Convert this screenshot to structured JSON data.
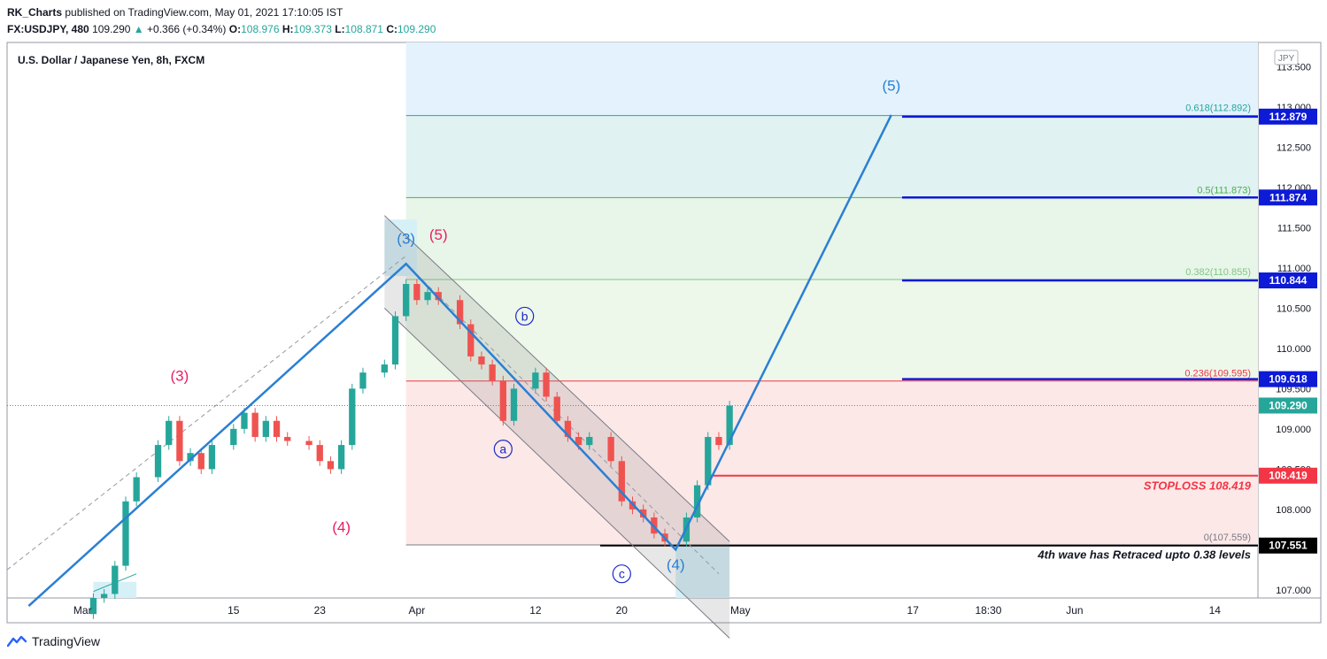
{
  "header": {
    "author": "RK_Charts",
    "published": "published on TradingView.com, May 01, 2021 17:10:05 IST",
    "symbol": "FX:USDJPY, 480",
    "last": "109.290",
    "change": "+0.366 (+0.34%)",
    "o_label": "O:",
    "o_value": "108.976",
    "h_label": "H:",
    "h_value": "109.373",
    "l_label": "L:",
    "l_value": "108.871",
    "c_label": "C:",
    "c_value": "109.290",
    "accent": "#26a69a"
  },
  "footer": {
    "brand": "TradingView"
  },
  "chart_data": {
    "type": "candlestick",
    "title": "U.S. Dollar / Japanese Yen, 8h, FXCM",
    "currency": "JPY",
    "ylim": [
      106.9,
      113.8
    ],
    "xlim": [
      "2021-02-22",
      "2021-06-18"
    ],
    "y_ticks": [
      "107.000",
      "107.500",
      "108.000",
      "108.500",
      "109.000",
      "109.500",
      "110.000",
      "110.500",
      "111.000",
      "111.500",
      "112.000",
      "112.500",
      "113.000",
      "113.500"
    ],
    "x_ticks": [
      {
        "label": "Mar",
        "date": "2021-03-01"
      },
      {
        "label": "15",
        "date": "2021-03-15"
      },
      {
        "label": "23",
        "date": "2021-03-23"
      },
      {
        "label": "Apr",
        "date": "2021-04-01"
      },
      {
        "label": "12",
        "date": "2021-04-12"
      },
      {
        "label": "20",
        "date": "2021-04-20"
      },
      {
        "label": "May",
        "date": "2021-05-01"
      },
      {
        "label": "17",
        "date": "2021-05-17"
      },
      {
        "label": "18:30",
        "date": "2021-05-24"
      },
      {
        "label": "Jun",
        "date": "2021-06-01"
      },
      {
        "label": "14",
        "date": "2021-06-14"
      }
    ],
    "series": [
      {
        "name": "",
        "points": [
          {
            "date": "2021-03-02",
            "price": 106.9
          },
          {
            "date": "2021-03-03",
            "price": 106.95
          },
          {
            "date": "2021-03-04",
            "price": 107.3
          },
          {
            "date": "2021-03-05",
            "price": 108.1
          },
          {
            "date": "2021-03-06",
            "price": 108.4
          },
          {
            "date": "2021-03-08",
            "price": 108.8
          },
          {
            "date": "2021-03-09",
            "price": 109.1
          },
          {
            "date": "2021-03-10",
            "price": 108.6
          },
          {
            "date": "2021-03-11",
            "price": 108.7
          },
          {
            "date": "2021-03-12",
            "price": 108.5
          },
          {
            "date": "2021-03-13",
            "price": 108.8
          },
          {
            "date": "2021-03-15",
            "price": 109.0
          },
          {
            "date": "2021-03-16",
            "price": 109.2
          },
          {
            "date": "2021-03-17",
            "price": 108.9
          },
          {
            "date": "2021-03-18",
            "price": 109.1
          },
          {
            "date": "2021-03-19",
            "price": 108.9
          },
          {
            "date": "2021-03-20",
            "price": 108.85
          },
          {
            "date": "2021-03-22",
            "price": 108.8
          },
          {
            "date": "2021-03-23",
            "price": 108.6
          },
          {
            "date": "2021-03-24",
            "price": 108.5
          },
          {
            "date": "2021-03-25",
            "price": 108.8
          },
          {
            "date": "2021-03-26",
            "price": 109.5
          },
          {
            "date": "2021-03-27",
            "price": 109.7
          },
          {
            "date": "2021-03-29",
            "price": 109.8
          },
          {
            "date": "2021-03-30",
            "price": 110.4
          },
          {
            "date": "2021-03-31",
            "price": 110.8
          },
          {
            "date": "2021-04-01",
            "price": 110.6
          },
          {
            "date": "2021-04-02",
            "price": 110.7
          },
          {
            "date": "2021-04-03",
            "price": 110.6
          },
          {
            "date": "2021-04-05",
            "price": 110.3
          },
          {
            "date": "2021-04-06",
            "price": 109.9
          },
          {
            "date": "2021-04-07",
            "price": 109.8
          },
          {
            "date": "2021-04-08",
            "price": 109.6
          },
          {
            "date": "2021-04-09",
            "price": 109.1
          },
          {
            "date": "2021-04-10",
            "price": 109.5
          },
          {
            "date": "2021-04-12",
            "price": 109.7
          },
          {
            "date": "2021-04-13",
            "price": 109.4
          },
          {
            "date": "2021-04-14",
            "price": 109.1
          },
          {
            "date": "2021-04-15",
            "price": 108.9
          },
          {
            "date": "2021-04-16",
            "price": 108.8
          },
          {
            "date": "2021-04-17",
            "price": 108.9
          },
          {
            "date": "2021-04-19",
            "price": 108.6
          },
          {
            "date": "2021-04-20",
            "price": 108.1
          },
          {
            "date": "2021-04-21",
            "price": 108.0
          },
          {
            "date": "2021-04-22",
            "price": 107.9
          },
          {
            "date": "2021-04-23",
            "price": 107.7
          },
          {
            "date": "2021-04-24",
            "price": 107.6
          },
          {
            "date": "2021-04-26",
            "price": 107.9
          },
          {
            "date": "2021-04-27",
            "price": 108.3
          },
          {
            "date": "2021-04-28",
            "price": 108.9
          },
          {
            "date": "2021-04-29",
            "price": 108.8
          },
          {
            "date": "2021-04-30",
            "price": 109.29
          }
        ]
      }
    ],
    "fibonacci": [
      {
        "level": "0.618(112.892)",
        "price": 112.892,
        "color": "#26a69a"
      },
      {
        "level": "0.5(111.873)",
        "price": 111.873,
        "color": "#4caf50"
      },
      {
        "level": "0.382(110.855)",
        "price": 110.855,
        "color": "#81c784"
      },
      {
        "level": "0.236(109.595)",
        "price": 109.595,
        "color": "#f23645"
      },
      {
        "level": "0(107.559)",
        "price": 107.559,
        "color": "#787b86"
      }
    ],
    "targets": [
      {
        "label": "112.879",
        "price": 112.879
      },
      {
        "label": "111.874",
        "price": 111.874
      },
      {
        "label": "110.844",
        "price": 110.844
      },
      {
        "label": "109.618",
        "price": 109.618
      }
    ],
    "last_price": {
      "label": "109.290",
      "price": 109.29,
      "color": "#26a69a"
    },
    "stoploss": {
      "label": "108.419",
      "price": 108.419,
      "text": "STOPLOSS 108.419",
      "color": "#f23645"
    },
    "support": {
      "label": "107.551",
      "price": 107.551,
      "text": "4th wave has Retraced upto 0.38 levels"
    },
    "wave_path": [
      {
        "date": "2021-02-24",
        "price": 106.8
      },
      {
        "date": "2021-03-31",
        "price": 111.05
      },
      {
        "date": "2021-04-25",
        "price": 107.5
      },
      {
        "date": "2021-05-15",
        "price": 112.9
      }
    ],
    "wave_labels": [
      {
        "text": "(3)",
        "date": "2021-03-10",
        "price": 109.6,
        "style": "pink"
      },
      {
        "text": "(4)",
        "date": "2021-03-25",
        "price": 107.72,
        "style": "pink"
      },
      {
        "text": "(3)",
        "date": "2021-03-31",
        "price": 111.3,
        "style": "blue"
      },
      {
        "text": "(5)",
        "date": "2021-04-03",
        "price": 111.35,
        "style": "pink"
      },
      {
        "text": "b",
        "date": "2021-04-11",
        "price": 110.4,
        "style": "circle"
      },
      {
        "text": "a",
        "date": "2021-04-09",
        "price": 108.75,
        "style": "circle"
      },
      {
        "text": "c",
        "date": "2021-04-20",
        "price": 107.2,
        "style": "circle"
      },
      {
        "text": "(4)",
        "date": "2021-04-25",
        "price": 107.25,
        "style": "blue"
      },
      {
        "text": "(5)",
        "date": "2021-05-15",
        "price": 113.2,
        "style": "blue"
      }
    ],
    "colors": {
      "wave": "#2a7fd4",
      "bull": "#26a69a",
      "bear": "#ef5350",
      "pink": "#e91e63",
      "circle": "#1a28c8",
      "target": "#0d1ad6"
    }
  }
}
